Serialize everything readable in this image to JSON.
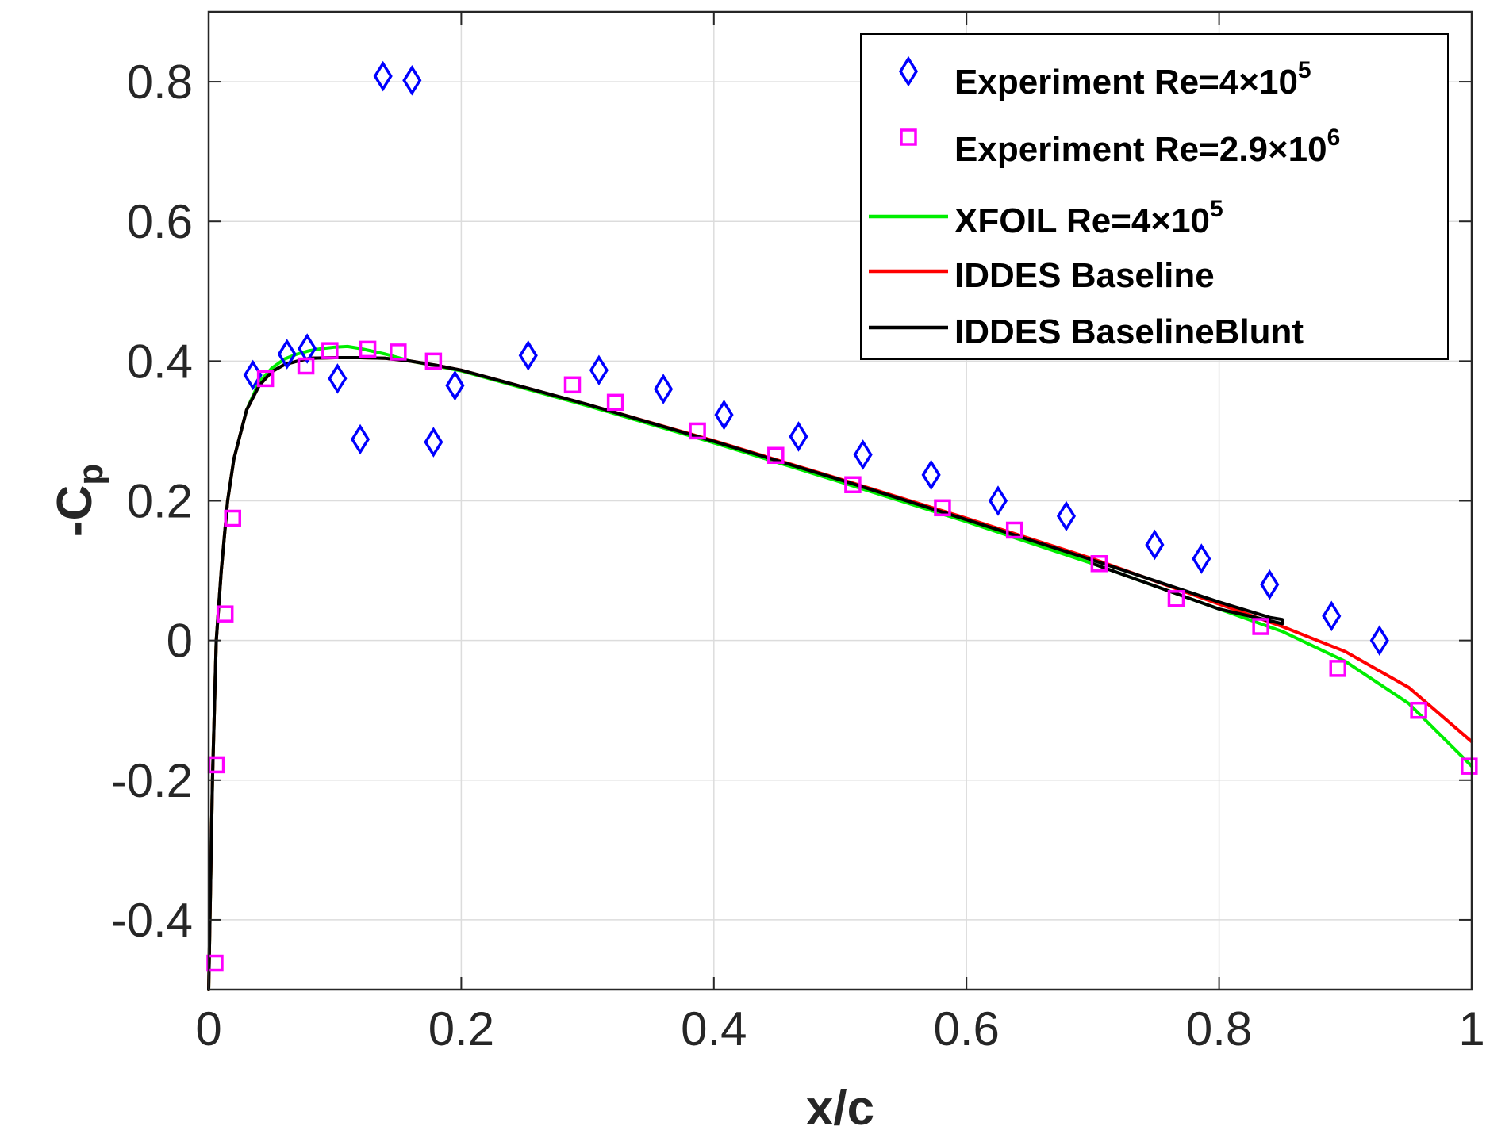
{
  "chart_data": {
    "type": "line",
    "title": "",
    "xlabel": "x/c",
    "ylabel": {
      "main": "-C",
      "sub": "p"
    },
    "xlim": [
      0,
      1
    ],
    "ylim": [
      -0.5,
      0.9
    ],
    "grid": true,
    "legend_position": "top-right",
    "xticks": [
      0,
      0.2,
      0.4,
      0.6,
      0.8,
      1
    ],
    "xtick_labels": [
      "0",
      "0.2",
      "0.4",
      "0.6",
      "0.8",
      "1"
    ],
    "yticks": [
      -0.4,
      -0.2,
      0,
      0.2,
      0.4,
      0.6,
      0.8
    ],
    "ytick_labels": [
      "-0.4",
      "-0.2",
      "0",
      "0.2",
      "0.4",
      "0.6",
      "0.8"
    ],
    "series": [
      {
        "name": "Experiment Re=4×10^5",
        "legend_main": "Experiment Re=4×10",
        "legend_sup": "5",
        "kind": "scatter",
        "marker": "diamond",
        "color": "#0000ff",
        "x": [
          0.035,
          0.062,
          0.078,
          0.102,
          0.12,
          0.138,
          0.161,
          0.178,
          0.195,
          0.253,
          0.309,
          0.36,
          0.408,
          0.467,
          0.518,
          0.572,
          0.625,
          0.679,
          0.749,
          0.786,
          0.84,
          0.889,
          0.927
        ],
        "y": [
          0.38,
          0.41,
          0.418,
          0.375,
          0.288,
          0.808,
          0.802,
          0.284,
          0.365,
          0.408,
          0.387,
          0.36,
          0.323,
          0.292,
          0.266,
          0.237,
          0.2,
          0.178,
          0.137,
          0.117,
          0.08,
          0.035,
          0.0
        ]
      },
      {
        "name": "Experiment Re=2.9×10^6",
        "legend_main": "Experiment Re=2.9×10",
        "legend_sup": "6",
        "kind": "scatter",
        "marker": "square",
        "color": "#ff00ff",
        "x": [
          0.005,
          0.006,
          0.013,
          0.019,
          0.045,
          0.077,
          0.096,
          0.126,
          0.15,
          0.178,
          0.288,
          0.322,
          0.387,
          0.449,
          0.51,
          0.581,
          0.638,
          0.705,
          0.766,
          0.833,
          0.894,
          0.958,
          0.998
        ],
        "y": [
          -0.462,
          -0.178,
          0.038,
          0.175,
          0.375,
          0.393,
          0.415,
          0.417,
          0.413,
          0.4,
          0.366,
          0.341,
          0.3,
          0.265,
          0.223,
          0.19,
          0.158,
          0.11,
          0.06,
          0.02,
          -0.04,
          -0.1,
          -0.18
        ]
      },
      {
        "name": "XFOIL Re=4×10^5",
        "legend_main": "XFOIL Re=4×10",
        "legend_sup": "5",
        "kind": "line",
        "color": "#00ee00",
        "x": [
          0.0,
          0.003,
          0.006,
          0.01,
          0.015,
          0.02,
          0.03,
          0.04,
          0.05,
          0.06,
          0.07,
          0.08,
          0.09,
          0.1,
          0.11,
          0.12,
          0.14,
          0.16,
          0.18,
          0.2,
          0.3,
          0.4,
          0.5,
          0.6,
          0.7,
          0.8,
          0.85,
          0.9,
          0.95,
          1.0
        ],
        "y": [
          -0.5,
          -0.2,
          0.0,
          0.1,
          0.2,
          0.26,
          0.33,
          0.37,
          0.39,
          0.403,
          0.41,
          0.415,
          0.418,
          0.42,
          0.421,
          0.418,
          0.41,
          0.4,
          0.393,
          0.386,
          0.336,
          0.283,
          0.227,
          0.17,
          0.11,
          0.045,
          0.013,
          -0.03,
          -0.09,
          -0.18
        ]
      },
      {
        "name": "IDDES Baseline",
        "legend_main": "IDDES Baseline",
        "legend_sup": "",
        "kind": "line",
        "color": "#ff0000",
        "x": [
          0.0,
          0.003,
          0.006,
          0.01,
          0.015,
          0.02,
          0.03,
          0.04,
          0.05,
          0.06,
          0.07,
          0.08,
          0.1,
          0.12,
          0.14,
          0.16,
          0.18,
          0.2,
          0.3,
          0.4,
          0.5,
          0.6,
          0.7,
          0.8,
          0.85,
          0.9,
          0.95,
          1.0
        ],
        "y": [
          -0.5,
          -0.2,
          0.0,
          0.1,
          0.2,
          0.26,
          0.33,
          0.365,
          0.385,
          0.395,
          0.4,
          0.404,
          0.405,
          0.405,
          0.404,
          0.4,
          0.394,
          0.387,
          0.338,
          0.286,
          0.231,
          0.175,
          0.117,
          0.052,
          0.02,
          -0.016,
          -0.067,
          -0.145
        ]
      },
      {
        "name": "IDDES BaselineBlunt",
        "legend_main": "IDDES BaselineBlunt",
        "legend_sup": "",
        "kind": "line",
        "color": "#000000",
        "x": [
          0.0,
          0.003,
          0.006,
          0.01,
          0.015,
          0.02,
          0.03,
          0.04,
          0.05,
          0.06,
          0.07,
          0.08,
          0.1,
          0.12,
          0.14,
          0.16,
          0.18,
          0.2,
          0.3,
          0.4,
          0.5,
          0.6,
          0.7,
          0.8,
          0.84,
          0.85,
          0.85,
          0.8,
          0.7
        ],
        "y": [
          -0.5,
          -0.2,
          0.0,
          0.1,
          0.2,
          0.26,
          0.33,
          0.365,
          0.385,
          0.395,
          0.4,
          0.404,
          0.405,
          0.405,
          0.404,
          0.4,
          0.394,
          0.387,
          0.338,
          0.285,
          0.23,
          0.173,
          0.115,
          0.055,
          0.033,
          0.03,
          0.024,
          0.045,
          0.11
        ]
      }
    ]
  }
}
